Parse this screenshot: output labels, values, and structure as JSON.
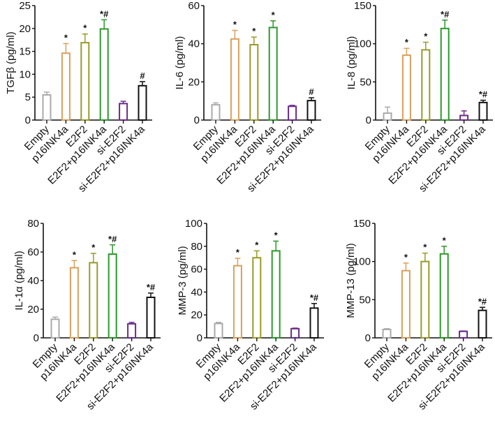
{
  "chart_data": [
    {
      "type": "bar",
      "title": "",
      "ylabel": "TGFβ (pg/ml)",
      "ylim": [
        0,
        25
      ],
      "yticks": [
        0,
        5,
        10,
        15,
        20,
        25
      ],
      "categories": [
        "Empty",
        "p16INK4a",
        "E2F2",
        "E2F2+p16INK4a",
        "si-E2F2",
        "si-E2F2+p16INK4a"
      ],
      "values": [
        5.5,
        14.6,
        16.9,
        19.9,
        3.6,
        7.5
      ],
      "errors": [
        0.6,
        2.1,
        1.9,
        2.0,
        0.5,
        0.9
      ],
      "annotations": [
        "",
        "*",
        "*",
        "*#",
        "",
        "#"
      ]
    },
    {
      "type": "bar",
      "title": "",
      "ylabel": "IL-6 (pg/ml)",
      "ylim": [
        0,
        60
      ],
      "yticks": [
        0,
        20,
        40,
        60
      ],
      "categories": [
        "Empty",
        "p16INK4a",
        "E2F2",
        "E2F2+p16INK4a",
        "si-E2F2",
        "si-E2F2+p16INK4a"
      ],
      "values": [
        8,
        42.5,
        39.5,
        48.5,
        7.2,
        10.2
      ],
      "errors": [
        1,
        4.5,
        4,
        3.5,
        0.5,
        1.5
      ],
      "annotations": [
        "",
        "*",
        "*",
        "*",
        "",
        "#"
      ]
    },
    {
      "type": "bar",
      "title": "",
      "ylabel": "IL-8 (pg/ml)",
      "ylim": [
        0,
        150
      ],
      "yticks": [
        0,
        50,
        100,
        150
      ],
      "categories": [
        "Empty",
        "p16INK4a",
        "E2F2",
        "E2F2+p16INK4a",
        "si-E2F2",
        "si-E2F2+p16INK4a"
      ],
      "values": [
        9,
        85,
        92,
        120,
        6,
        23
      ],
      "errors": [
        8,
        9,
        10,
        11,
        6,
        3
      ],
      "annotations": [
        "",
        "*",
        "*",
        "*#",
        "",
        "*#"
      ]
    },
    {
      "type": "bar",
      "title": "",
      "ylabel": "IL-1α (pg/ml)",
      "ylim": [
        0,
        80
      ],
      "yticks": [
        0,
        20,
        40,
        60,
        80
      ],
      "categories": [
        "Empty",
        "p16INK4a",
        "E2F2",
        "E2F2+p16INK4a",
        "si-E2F2",
        "si-E2F2+p16INK4a"
      ],
      "values": [
        13,
        49,
        52.5,
        58.5,
        9.8,
        28.3
      ],
      "errors": [
        1.5,
        5,
        6.5,
        6.5,
        1,
        3
      ],
      "annotations": [
        "",
        "*",
        "*",
        "*#",
        "",
        "*#"
      ]
    },
    {
      "type": "bar",
      "title": "",
      "ylabel": "MMP-3 (pg/ml)",
      "ylim": [
        0,
        100
      ],
      "yticks": [
        0,
        20,
        40,
        60,
        80,
        100
      ],
      "categories": [
        "Empty",
        "p16INK4a",
        "E2F2",
        "E2F2+p16INK4a",
        "si-E2F2",
        "si-E2F2+p16INK4a"
      ],
      "values": [
        12.5,
        63,
        70,
        76,
        8,
        26
      ],
      "errors": [
        1,
        6.5,
        6,
        8.5,
        0.5,
        4
      ],
      "annotations": [
        "",
        "*",
        "*",
        "*",
        "",
        "*#"
      ]
    },
    {
      "type": "bar",
      "title": "",
      "ylabel": "MMP-13 (pg/ml)",
      "ylim": [
        0,
        150
      ],
      "yticks": [
        0,
        50,
        100,
        150
      ],
      "categories": [
        "Empty",
        "p16INK4a",
        "E2F2",
        "E2F2+p16INK4a",
        "si-E2F2",
        "si-E2F2+p16INK4a"
      ],
      "values": [
        11,
        88,
        100,
        110,
        8.5,
        36
      ],
      "errors": [
        1,
        10,
        11,
        10,
        0.5,
        4
      ],
      "annotations": [
        "",
        "*",
        "*",
        "*",
        "",
        "*#"
      ]
    }
  ],
  "colors": [
    "#aaaaaa",
    "#d9a05b",
    "#9a9a2a",
    "#2a9a2a",
    "#6a2a8a",
    "#111111"
  ]
}
